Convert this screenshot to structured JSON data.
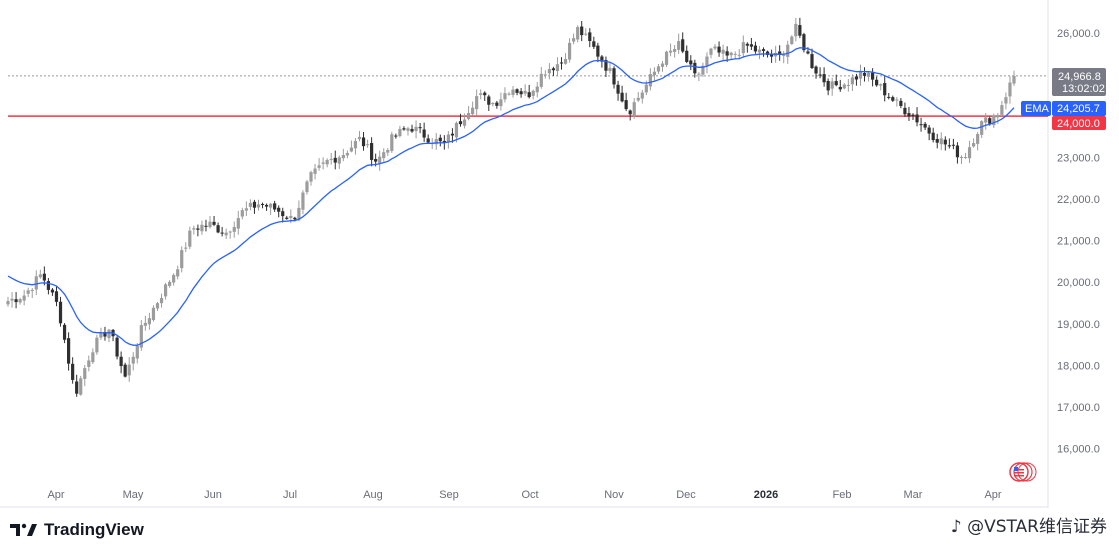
{
  "branding": {
    "logo_text": "TradingView",
    "watermark": "@VSTAR维信证券",
    "watermark_icon": "tiktok-note-icon"
  },
  "colors": {
    "candle_up": "#9c9c9c",
    "candle_down": "#2f2f2f",
    "ema": "#2962ff",
    "support_line": "#f23645",
    "last_price_tag": "#787b86",
    "grid_dotted": "#9598a1",
    "flag_icon": "#f23645"
  },
  "price_scale": {
    "ticks": [
      "26,000.0",
      "25,000.0",
      "24,000.0",
      "23,000.0",
      "22,000.0",
      "21,000.0",
      "20,000.0",
      "19,000.0",
      "18,000.0",
      "17,000.0",
      "16,000.0"
    ],
    "last_price": "24,966.8",
    "countdown": "13:02:02",
    "ema_label": "EMA",
    "ema_value": "24,205.7",
    "support_value": "24,000.0"
  },
  "time_scale": {
    "labels": [
      "Apr",
      "May",
      "Jun",
      "Jul",
      "Aug",
      "Sep",
      "Oct",
      "Nov",
      "Dec",
      "2026",
      "Feb",
      "Mar",
      "Apr"
    ]
  },
  "chart_data": {
    "type": "candlestick",
    "timeframe": "daily",
    "ylim": [
      15500,
      26700
    ],
    "ema_last": 24205.7,
    "last_close": 24966.8,
    "horizontal_line": 24000,
    "months": [
      "Apr",
      "May",
      "Jun",
      "Jul",
      "Aug",
      "Sep",
      "Oct",
      "Nov",
      "Dec",
      "2026",
      "Feb",
      "Mar",
      "Apr"
    ],
    "close_anchors": [
      {
        "m": "Mar",
        "v": 19550
      },
      {
        "m": "Mar",
        "v": 19700
      },
      {
        "m": "Apr",
        "v": 20200
      },
      {
        "m": "Apr",
        "v": 19400
      },
      {
        "m": "Apr",
        "v": 17300
      },
      {
        "m": "Apr",
        "v": 18400
      },
      {
        "m": "Apr",
        "v": 18900
      },
      {
        "m": "Apr",
        "v": 17700
      },
      {
        "m": "Apr",
        "v": 18900
      },
      {
        "m": "May",
        "v": 19600
      },
      {
        "m": "May",
        "v": 20300
      },
      {
        "m": "May",
        "v": 21300
      },
      {
        "m": "May",
        "v": 21400
      },
      {
        "m": "May",
        "v": 21200
      },
      {
        "m": "Jun",
        "v": 21700
      },
      {
        "m": "Jun",
        "v": 21900
      },
      {
        "m": "Jun",
        "v": 21750
      },
      {
        "m": "Jun",
        "v": 21500
      },
      {
        "m": "Jul",
        "v": 22500
      },
      {
        "m": "Jul",
        "v": 22900
      },
      {
        "m": "Jul",
        "v": 23100
      },
      {
        "m": "Jul",
        "v": 23450
      },
      {
        "m": "Aug",
        "v": 22900
      },
      {
        "m": "Aug",
        "v": 23500
      },
      {
        "m": "Aug",
        "v": 23750
      },
      {
        "m": "Aug",
        "v": 23500
      },
      {
        "m": "Sep",
        "v": 23300
      },
      {
        "m": "Sep",
        "v": 23900
      },
      {
        "m": "Sep",
        "v": 24500
      },
      {
        "m": "Oct",
        "v": 24300
      },
      {
        "m": "Oct",
        "v": 24700
      },
      {
        "m": "Oct",
        "v": 24500
      },
      {
        "m": "Oct",
        "v": 25100
      },
      {
        "m": "Oct",
        "v": 25300
      },
      {
        "m": "Nov",
        "v": 26100
      },
      {
        "m": "Nov",
        "v": 25600
      },
      {
        "m": "Nov",
        "v": 25000
      },
      {
        "m": "Nov",
        "v": 24100
      },
      {
        "m": "Nov",
        "v": 24700
      },
      {
        "m": "Dec",
        "v": 25350
      },
      {
        "m": "Dec",
        "v": 25700
      },
      {
        "m": "Dec",
        "v": 24900
      },
      {
        "m": "Dec",
        "v": 25600
      },
      {
        "m": "2026",
        "v": 25400
      },
      {
        "m": "2026",
        "v": 25700
      },
      {
        "m": "2026",
        "v": 25500
      },
      {
        "m": "2026",
        "v": 25400
      },
      {
        "m": "Feb",
        "v": 26100
      },
      {
        "m": "Feb",
        "v": 25200
      },
      {
        "m": "Feb",
        "v": 24700
      },
      {
        "m": "Feb",
        "v": 24800
      },
      {
        "m": "Mar",
        "v": 25050
      },
      {
        "m": "Mar",
        "v": 24700
      },
      {
        "m": "Mar",
        "v": 24300
      },
      {
        "m": "Mar",
        "v": 24000
      },
      {
        "m": "Mar",
        "v": 23600
      },
      {
        "m": "Mar",
        "v": 23300
      },
      {
        "m": "Mar",
        "v": 23000
      },
      {
        "m": "Apr",
        "v": 23800
      },
      {
        "m": "Apr",
        "v": 24050
      },
      {
        "m": "Apr",
        "v": 24966.8
      }
    ]
  }
}
